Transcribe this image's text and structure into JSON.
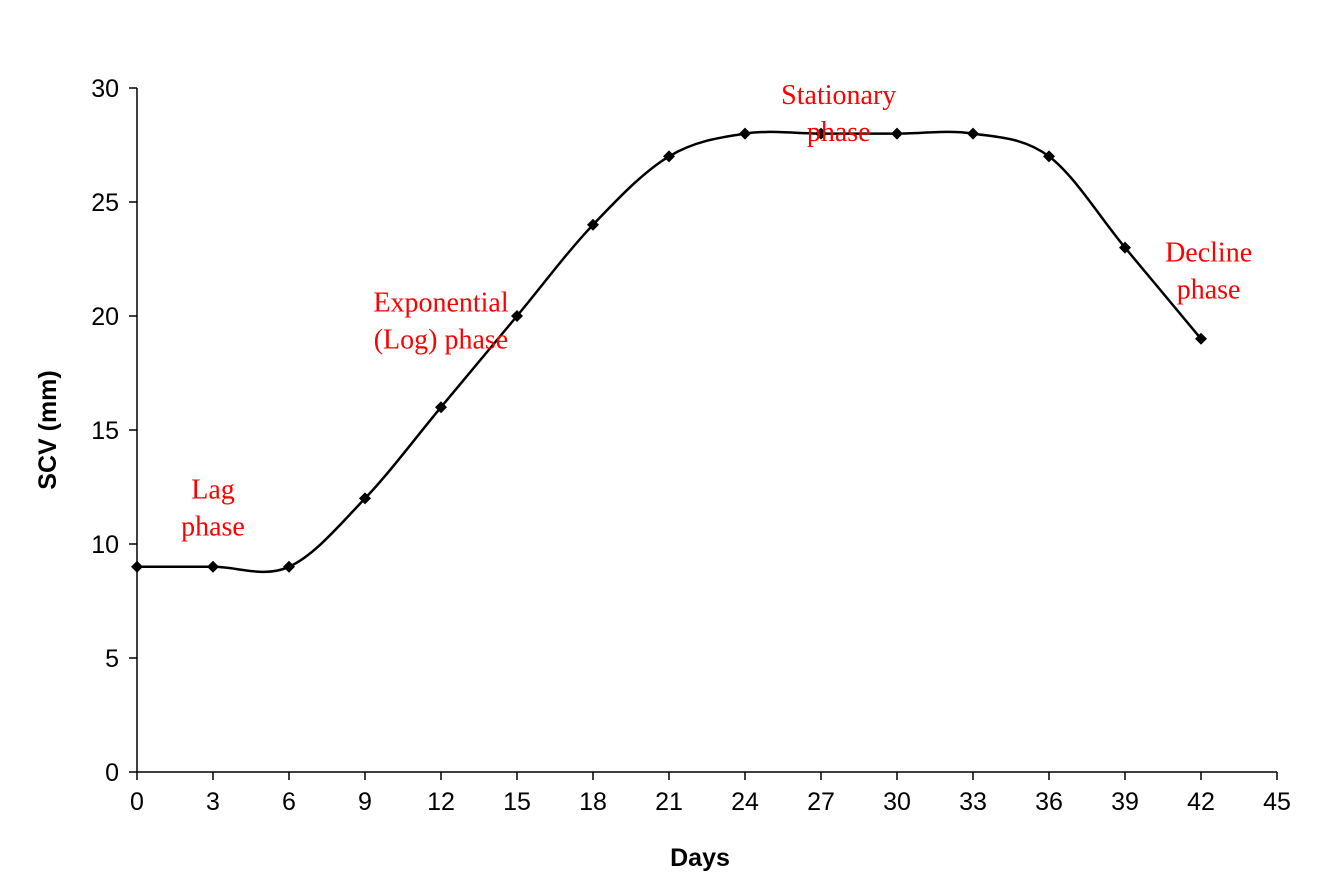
{
  "chart_data": {
    "type": "line",
    "title": "",
    "xlabel": "Days",
    "ylabel": "SCV (mm)",
    "xlim": [
      0,
      45
    ],
    "ylim": [
      0,
      30
    ],
    "xticks": [
      0,
      3,
      6,
      9,
      12,
      15,
      18,
      21,
      24,
      27,
      30,
      33,
      36,
      39,
      42,
      45
    ],
    "yticks": [
      0,
      5,
      10,
      15,
      20,
      25,
      30
    ],
    "grid": false,
    "legend": "none",
    "smooth": true,
    "marker": "diamond",
    "series": [
      {
        "x": [
          0,
          3,
          6,
          9,
          12,
          15,
          18,
          21,
          24,
          27,
          30,
          33,
          36,
          39,
          42
        ],
        "values": [
          9,
          9,
          9,
          12,
          16,
          20,
          24,
          27,
          28,
          28,
          28,
          28,
          27,
          23,
          19
        ],
        "color": "#000000"
      }
    ],
    "annotations": [
      {
        "lines": [
          "Lag",
          "phase"
        ],
        "x": 3,
        "y": 12
      },
      {
        "lines": [
          "Exponential",
          "(Log) phase"
        ],
        "x": 12,
        "y": 20.2
      },
      {
        "lines": [
          "Stationary",
          "phase"
        ],
        "x": 27.7,
        "y": 29.3
      },
      {
        "lines": [
          "Decline",
          "phase"
        ],
        "x": 42.3,
        "y": 22.4
      }
    ],
    "annotation_color": "#ff0000"
  }
}
